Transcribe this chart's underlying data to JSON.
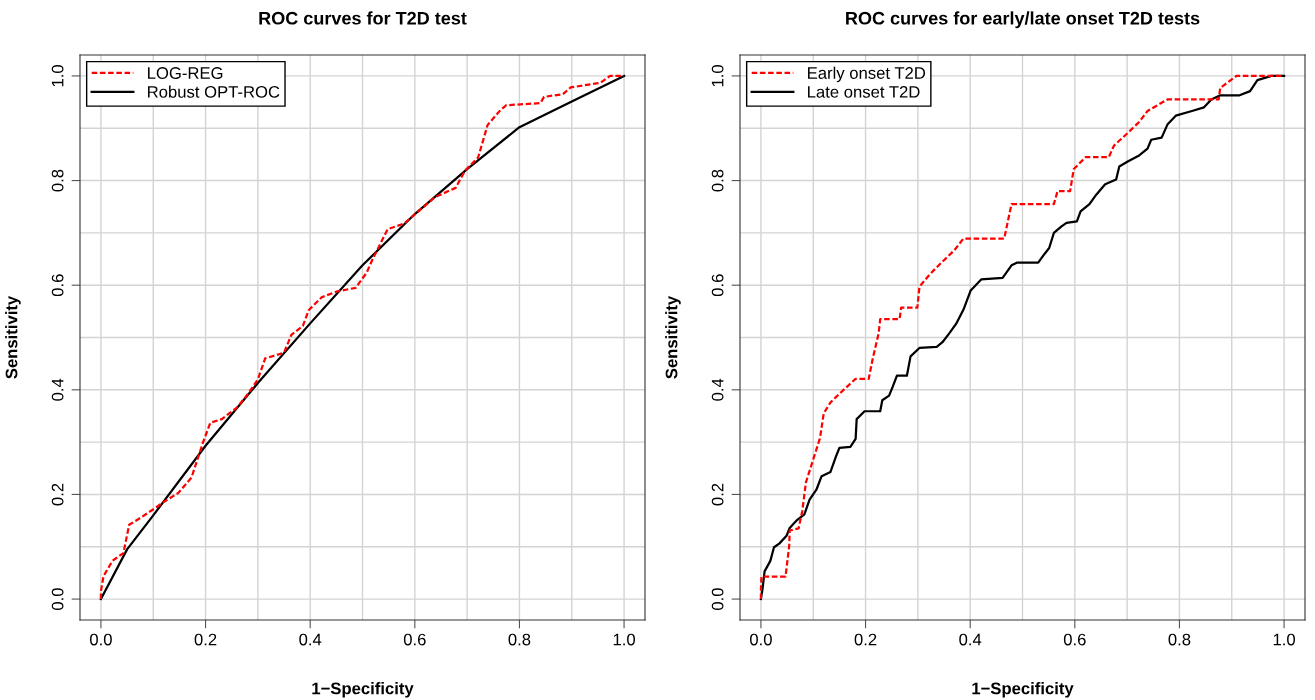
{
  "chart_data": [
    {
      "type": "line",
      "title": "ROC curves for T2D test",
      "xlabel": "1−Specificity",
      "ylabel": "Sensitivity",
      "xlim": [
        -0.04,
        1.04
      ],
      "ylim": [
        -0.04,
        1.04
      ],
      "xticks": [
        {
          "value": 0,
          "label": "0.0"
        },
        {
          "value": 0.2,
          "label": "0.2"
        },
        {
          "value": 0.4,
          "label": "0.4"
        },
        {
          "value": 0.6,
          "label": "0.6"
        },
        {
          "value": 0.8,
          "label": "0.8"
        },
        {
          "value": 1,
          "label": "1.0"
        }
      ],
      "yticks": [
        {
          "value": 0,
          "label": "0.0"
        },
        {
          "value": 0.2,
          "label": "0.2"
        },
        {
          "value": 0.4,
          "label": "0.4"
        },
        {
          "value": 0.6,
          "label": "0.6"
        },
        {
          "value": 0.8,
          "label": "0.8"
        },
        {
          "value": 1,
          "label": "1.0"
        }
      ],
      "grid": true,
      "legend": "top left",
      "marker": "none",
      "series": [
        {
          "name": "LOG-REG",
          "color": "#ff0000",
          "line_style": "dashed",
          "x": [
            0,
            0,
            0.005,
            0.022,
            0.043,
            0.054,
            0.072,
            0.09,
            0.104,
            0.119,
            0.148,
            0.173,
            0.195,
            0.209,
            0.231,
            0.26,
            0.281,
            0.3,
            0.314,
            0.35,
            0.364,
            0.386,
            0.397,
            0.422,
            0.451,
            0.487,
            0.508,
            0.519,
            0.548,
            0.58,
            0.609,
            0.638,
            0.678,
            0.696,
            0.721,
            0.739,
            0.764,
            0.775,
            0.84,
            0.847,
            0.883,
            0.898,
            0.955,
            0.973,
            1
          ],
          "values": [
            0,
            0.015,
            0.044,
            0.073,
            0.088,
            0.142,
            0.153,
            0.165,
            0.174,
            0.185,
            0.203,
            0.232,
            0.299,
            0.337,
            0.344,
            0.366,
            0.392,
            0.42,
            0.46,
            0.471,
            0.505,
            0.522,
            0.552,
            0.577,
            0.588,
            0.595,
            0.624,
            0.649,
            0.707,
            0.718,
            0.743,
            0.768,
            0.786,
            0.819,
            0.844,
            0.906,
            0.935,
            0.944,
            0.948,
            0.96,
            0.965,
            0.978,
            0.987,
            1,
            1
          ]
        },
        {
          "name": "Robust OPT-ROC",
          "color": "#000000",
          "line_style": "solid",
          "x": [
            0,
            0.05,
            0.1,
            0.2,
            0.3,
            0.4,
            0.5,
            0.6,
            0.7,
            0.8,
            0.9,
            1
          ],
          "values": [
            0,
            0.095,
            0.16,
            0.293,
            0.413,
            0.527,
            0.638,
            0.736,
            0.822,
            0.902,
            0.951,
            1
          ]
        }
      ]
    },
    {
      "type": "line",
      "title": "ROC curves for early/late onset T2D tests",
      "xlabel": "1−Specificity",
      "ylabel": "Sensitivity",
      "xlim": [
        -0.04,
        1.04
      ],
      "ylim": [
        -0.04,
        1.04
      ],
      "xticks": [
        {
          "value": 0,
          "label": "0.0"
        },
        {
          "value": 0.2,
          "label": "0.2"
        },
        {
          "value": 0.4,
          "label": "0.4"
        },
        {
          "value": 0.6,
          "label": "0.6"
        },
        {
          "value": 0.8,
          "label": "0.8"
        },
        {
          "value": 1,
          "label": "1.0"
        }
      ],
      "yticks": [
        {
          "value": 0,
          "label": "0.0"
        },
        {
          "value": 0.2,
          "label": "0.2"
        },
        {
          "value": 0.4,
          "label": "0.4"
        },
        {
          "value": 0.6,
          "label": "0.6"
        },
        {
          "value": 0.8,
          "label": "0.8"
        },
        {
          "value": 1,
          "label": "1.0"
        }
      ],
      "grid": true,
      "legend": "top left",
      "marker": "none",
      "series": [
        {
          "name": "Early onset T2D",
          "color": "#ff0000",
          "line_style": "dashed",
          "x": [
            0,
            0,
            0.001,
            0.047,
            0.054,
            0.055,
            0.072,
            0.079,
            0.086,
            0.1,
            0.113,
            0.12,
            0.133,
            0.157,
            0.181,
            0.206,
            0.214,
            0.225,
            0.228,
            0.265,
            0.268,
            0.299,
            0.303,
            0.323,
            0.347,
            0.37,
            0.387,
            0.465,
            0.479,
            0.56,
            0.567,
            0.591,
            0.598,
            0.621,
            0.665,
            0.675,
            0.699,
            0.723,
            0.739,
            0.777,
            0.875,
            0.878,
            0.909,
            1
          ],
          "values": [
            0,
            0.019,
            0.043,
            0.043,
            0.101,
            0.131,
            0.135,
            0.168,
            0.223,
            0.267,
            0.308,
            0.355,
            0.376,
            0.399,
            0.421,
            0.421,
            0.461,
            0.508,
            0.535,
            0.535,
            0.557,
            0.557,
            0.597,
            0.621,
            0.645,
            0.667,
            0.689,
            0.689,
            0.755,
            0.755,
            0.78,
            0.78,
            0.822,
            0.845,
            0.845,
            0.867,
            0.889,
            0.912,
            0.933,
            0.955,
            0.955,
            0.977,
            1,
            1
          ]
        },
        {
          "name": "Late onset T2D",
          "color": "#000000",
          "line_style": "solid",
          "x": [
            0,
            0.003,
            0.007,
            0.018,
            0.025,
            0.035,
            0.049,
            0.055,
            0.069,
            0.083,
            0.093,
            0.106,
            0.116,
            0.133,
            0.144,
            0.15,
            0.171,
            0.181,
            0.183,
            0.198,
            0.228,
            0.232,
            0.245,
            0.252,
            0.26,
            0.279,
            0.286,
            0.303,
            0.336,
            0.347,
            0.36,
            0.373,
            0.387,
            0.401,
            0.421,
            0.462,
            0.479,
            0.489,
            0.53,
            0.54,
            0.551,
            0.56,
            0.574,
            0.584,
            0.604,
            0.611,
            0.628,
            0.641,
            0.658,
            0.679,
            0.685,
            0.702,
            0.723,
            0.739,
            0.746,
            0.766,
            0.777,
            0.793,
            0.824,
            0.847,
            0.861,
            0.878,
            0.915,
            0.935,
            0.949,
            0.976,
            1
          ],
          "values": [
            0,
            0.019,
            0.053,
            0.073,
            0.099,
            0.106,
            0.121,
            0.136,
            0.151,
            0.162,
            0.19,
            0.209,
            0.235,
            0.243,
            0.274,
            0.289,
            0.291,
            0.306,
            0.344,
            0.359,
            0.359,
            0.38,
            0.389,
            0.406,
            0.427,
            0.427,
            0.464,
            0.48,
            0.482,
            0.491,
            0.508,
            0.526,
            0.553,
            0.59,
            0.611,
            0.614,
            0.638,
            0.643,
            0.643,
            0.657,
            0.671,
            0.7,
            0.712,
            0.719,
            0.722,
            0.741,
            0.755,
            0.773,
            0.793,
            0.802,
            0.827,
            0.837,
            0.848,
            0.861,
            0.878,
            0.882,
            0.907,
            0.924,
            0.933,
            0.94,
            0.955,
            0.963,
            0.963,
            0.971,
            0.992,
            1,
            1
          ]
        }
      ]
    }
  ]
}
